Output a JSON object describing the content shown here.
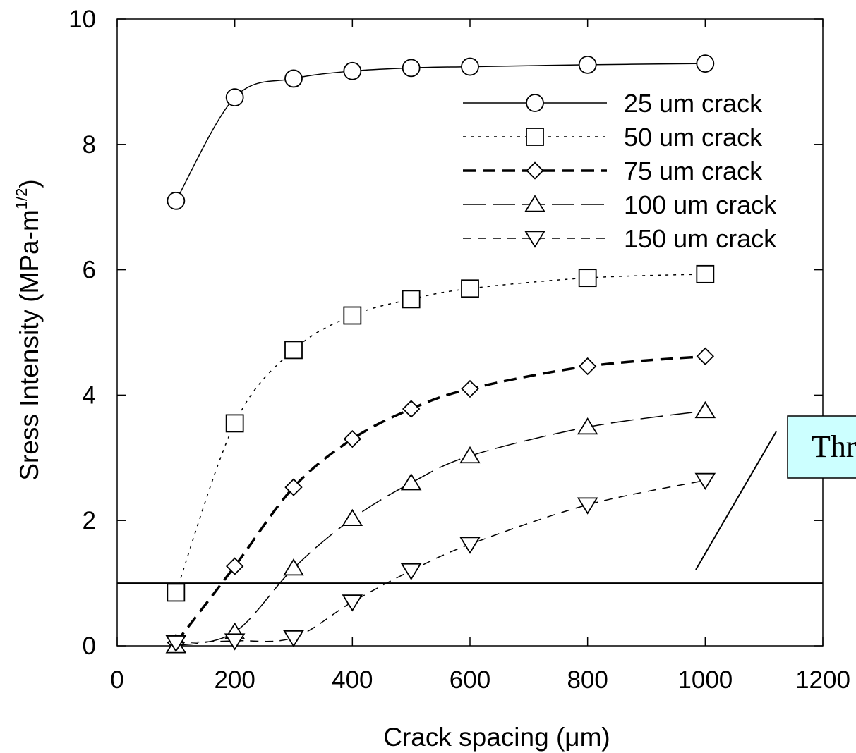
{
  "chart_data": {
    "type": "line",
    "xlabel": "Crack spacing (μm)",
    "ylabel": "Sress Intensity (MPa-m",
    "ylabel_superscript": "1/2",
    "ylabel_suffix": ")",
    "xlim": [
      0,
      1200
    ],
    "ylim": [
      0,
      10
    ],
    "xticks": [
      0,
      200,
      400,
      600,
      800,
      1000,
      1200
    ],
    "yticks": [
      0,
      2,
      4,
      6,
      8,
      10
    ],
    "grid": false,
    "legend_position": "top-right",
    "threshold_line": {
      "y": 1.0
    },
    "callout": {
      "text": "Thr"
    },
    "series": [
      {
        "name": "25 um crack",
        "marker": "circle",
        "line_style": "solid",
        "x": [
          100,
          200,
          300,
          400,
          500,
          600,
          800,
          1000
        ],
        "y": [
          7.1,
          8.75,
          9.05,
          9.17,
          9.22,
          9.24,
          9.27,
          9.29
        ]
      },
      {
        "name": "50 um crack",
        "marker": "square",
        "line_style": "dotted",
        "x": [
          100,
          200,
          300,
          400,
          500,
          600,
          800,
          1000
        ],
        "y": [
          0.85,
          3.55,
          4.72,
          5.27,
          5.53,
          5.7,
          5.87,
          5.93
        ]
      },
      {
        "name": "75 um crack",
        "marker": "diamond",
        "line_style": "heavy-dash",
        "x": [
          100,
          200,
          300,
          400,
          500,
          600,
          800,
          1000
        ],
        "y": [
          0.05,
          1.27,
          2.53,
          3.3,
          3.78,
          4.1,
          4.46,
          4.62
        ]
      },
      {
        "name": "100 um crack",
        "marker": "triangle-up",
        "line_style": "long-dash",
        "x": [
          100,
          200,
          300,
          400,
          500,
          600,
          800,
          1000
        ],
        "y": [
          0.0,
          0.22,
          1.24,
          2.03,
          2.6,
          3.03,
          3.49,
          3.75
        ]
      },
      {
        "name": "150 um crack",
        "marker": "triangle-down",
        "line_style": "dashed",
        "x": [
          100,
          200,
          300,
          400,
          500,
          600,
          800,
          1000
        ],
        "y": [
          0.05,
          0.08,
          0.13,
          0.7,
          1.2,
          1.62,
          2.25,
          2.64
        ]
      }
    ]
  },
  "colors": {
    "line": "#000000",
    "callout_fill": "#ccffff",
    "callout_border": "#000000"
  }
}
